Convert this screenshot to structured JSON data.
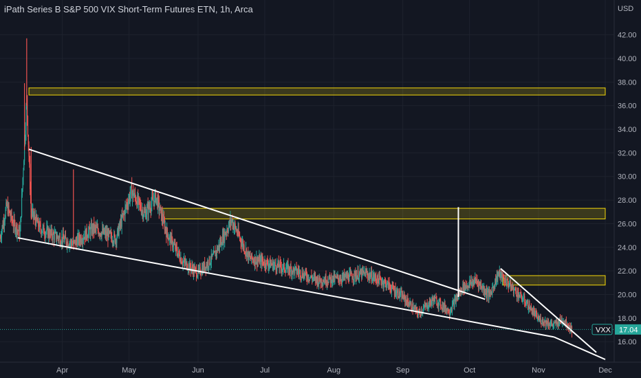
{
  "header": {
    "title": "iPath Series B S&P 500 VIX Short-Term Futures ETN, 1h, Arca"
  },
  "chart_data": {
    "type": "candlestick",
    "symbol": "VXX",
    "currency": "USD",
    "last_price": "17.04",
    "ylim": [
      14.5,
      43.2
    ],
    "y_ticks": [
      42,
      40,
      38,
      36,
      34,
      32,
      30,
      28,
      26,
      24,
      22,
      20,
      18,
      16
    ],
    "y_tick_labels": [
      "42.00",
      "40.00",
      "38.00",
      "36.00",
      "34.00",
      "32.00",
      "30.00",
      "28.00",
      "26.00",
      "24.00",
      "22.00",
      "20.00",
      "18.00",
      "16.00"
    ],
    "x_labels": [
      "Apr",
      "May",
      "Jun",
      "Jul",
      "Aug",
      "Sep",
      "Oct",
      "Nov",
      "Dec"
    ],
    "x_label_dates": [
      "2022-04-01",
      "2022-05-01",
      "2022-06-01",
      "2022-07-01",
      "2022-08-01",
      "2022-09-01",
      "2022-10-01",
      "2022-11-01",
      "2022-12-01"
    ],
    "xlim": [
      "2022-03-04",
      "2022-12-01"
    ],
    "price_path": [
      {
        "date": "2022-03-04",
        "price": 24.8
      },
      {
        "date": "2022-03-07",
        "price": 27.5
      },
      {
        "date": "2022-03-10",
        "price": 26.0
      },
      {
        "date": "2022-03-13",
        "price": 25.2
      },
      {
        "date": "2022-03-16",
        "price": 36.5
      },
      {
        "date": "2022-03-18",
        "price": 27.0
      },
      {
        "date": "2022-03-22",
        "price": 25.6
      },
      {
        "date": "2022-03-28",
        "price": 25.0
      },
      {
        "date": "2022-04-06",
        "price": 24.3
      },
      {
        "date": "2022-04-15",
        "price": 25.6
      },
      {
        "date": "2022-04-25",
        "price": 24.7
      },
      {
        "date": "2022-05-02",
        "price": 28.8
      },
      {
        "date": "2022-05-08",
        "price": 26.8
      },
      {
        "date": "2022-05-13",
        "price": 28.3
      },
      {
        "date": "2022-05-18",
        "price": 25.2
      },
      {
        "date": "2022-05-25",
        "price": 22.8
      },
      {
        "date": "2022-06-01",
        "price": 21.8
      },
      {
        "date": "2022-06-08",
        "price": 23.2
      },
      {
        "date": "2022-06-16",
        "price": 26.3
      },
      {
        "date": "2022-06-24",
        "price": 23.1
      },
      {
        "date": "2022-07-05",
        "price": 22.5
      },
      {
        "date": "2022-07-15",
        "price": 22.0
      },
      {
        "date": "2022-07-25",
        "price": 21.2
      },
      {
        "date": "2022-08-05",
        "price": 21.4
      },
      {
        "date": "2022-08-15",
        "price": 21.8
      },
      {
        "date": "2022-08-24",
        "price": 21.0
      },
      {
        "date": "2022-09-01",
        "price": 19.8
      },
      {
        "date": "2022-09-08",
        "price": 18.4
      },
      {
        "date": "2022-09-15",
        "price": 19.6
      },
      {
        "date": "2022-09-22",
        "price": 18.6
      },
      {
        "date": "2022-09-28",
        "price": 20.6
      },
      {
        "date": "2022-10-04",
        "price": 21.2
      },
      {
        "date": "2022-10-10",
        "price": 19.9
      },
      {
        "date": "2022-10-14",
        "price": 21.8
      },
      {
        "date": "2022-10-20",
        "price": 20.6
      },
      {
        "date": "2022-10-26",
        "price": 19.4
      },
      {
        "date": "2022-11-01",
        "price": 17.9
      },
      {
        "date": "2022-11-08",
        "price": 17.4
      },
      {
        "date": "2022-11-12",
        "price": 17.9
      },
      {
        "date": "2022-11-16",
        "price": 17.0
      }
    ],
    "spikes": [
      {
        "date": "2022-03-16",
        "high": 41.7
      },
      {
        "date": "2022-03-15",
        "high": 37.9
      },
      {
        "date": "2022-03-18",
        "high": 32.5
      },
      {
        "date": "2022-04-06",
        "high": 30.6
      }
    ],
    "drawings": {
      "trend_lines": [
        {
          "from": {
            "date": "2022-03-17",
            "price": 32.3
          },
          "to": {
            "date": "2022-10-08",
            "price": 19.6
          }
        },
        {
          "from": {
            "date": "2022-03-12",
            "price": 24.8
          },
          "to": {
            "date": "2022-11-08",
            "price": 16.4
          }
        },
        {
          "from": {
            "date": "2022-10-15",
            "price": 22.2
          },
          "to": {
            "date": "2022-11-27",
            "price": 15.1
          }
        },
        {
          "from": {
            "date": "2022-11-08",
            "price": 16.4
          },
          "to": {
            "date": "2022-12-01",
            "price": 14.5
          }
        }
      ],
      "vertical_line": {
        "date": "2022-09-26",
        "from": 27.4,
        "to": 19.8
      },
      "zones": [
        {
          "from_date": "2022-03-17",
          "to_date": "2022-12-01",
          "top": 37.5,
          "bottom": 36.9
        },
        {
          "from_date": "2022-05-16",
          "to_date": "2022-12-01",
          "top": 27.3,
          "bottom": 26.4
        },
        {
          "from_date": "2022-10-16",
          "to_date": "2022-12-01",
          "top": 21.6,
          "bottom": 20.8
        }
      ]
    },
    "colors": {
      "background": "#131722",
      "up": "#26a69a",
      "down": "#ef5350",
      "grid": "#1e222d",
      "zone": "#f5d90a",
      "trend": "#ffffff",
      "last_price": "#26a69a"
    }
  }
}
